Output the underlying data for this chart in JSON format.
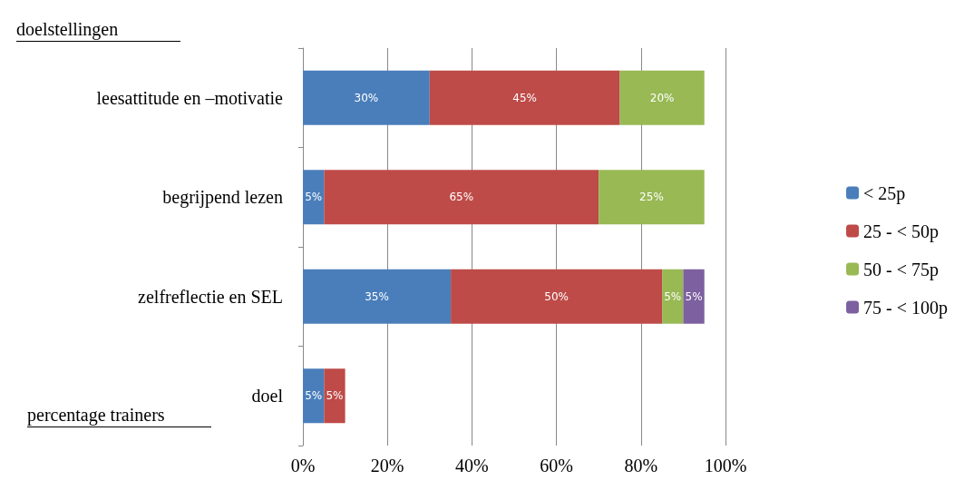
{
  "chart_data": {
    "type": "bar",
    "orientation": "horizontal",
    "stacked": true,
    "categories": [
      "leesattitude en –motivatie",
      "begrijpend lezen",
      "zelfreflectie en SEL",
      "doel"
    ],
    "series": [
      {
        "name": "< 25p",
        "color": "#4a7ebb",
        "values": [
          30,
          5,
          35,
          5
        ],
        "value_labels": [
          "30%",
          "5%",
          "35%",
          "5%"
        ]
      },
      {
        "name": "25 - < 50p",
        "color": "#be4b48",
        "values": [
          45,
          65,
          50,
          5
        ],
        "value_labels": [
          "45%",
          "65%",
          "50%",
          "5%"
        ]
      },
      {
        "name": "50 - < 75p",
        "color": "#98b954",
        "values": [
          20,
          25,
          5,
          null
        ],
        "value_labels": [
          "20%",
          "25%",
          "5%",
          null
        ]
      },
      {
        "name": "75 - < 100p",
        "color": "#7d60a0",
        "values": [
          null,
          null,
          5,
          null
        ],
        "value_labels": [
          null,
          null,
          "5%",
          null
        ]
      }
    ],
    "xlim": [
      0,
      100
    ],
    "xticks": [
      {
        "value": 0,
        "label": "0%"
      },
      {
        "value": 20,
        "label": "20%"
      },
      {
        "value": 40,
        "label": "40%"
      },
      {
        "value": 60,
        "label": "60%"
      },
      {
        "value": 80,
        "label": "80%"
      },
      {
        "value": 100,
        "label": "100%"
      }
    ],
    "grid": "x",
    "legend": "right",
    "annotations": [
      "doelstellingen",
      "percentage trainers"
    ]
  }
}
